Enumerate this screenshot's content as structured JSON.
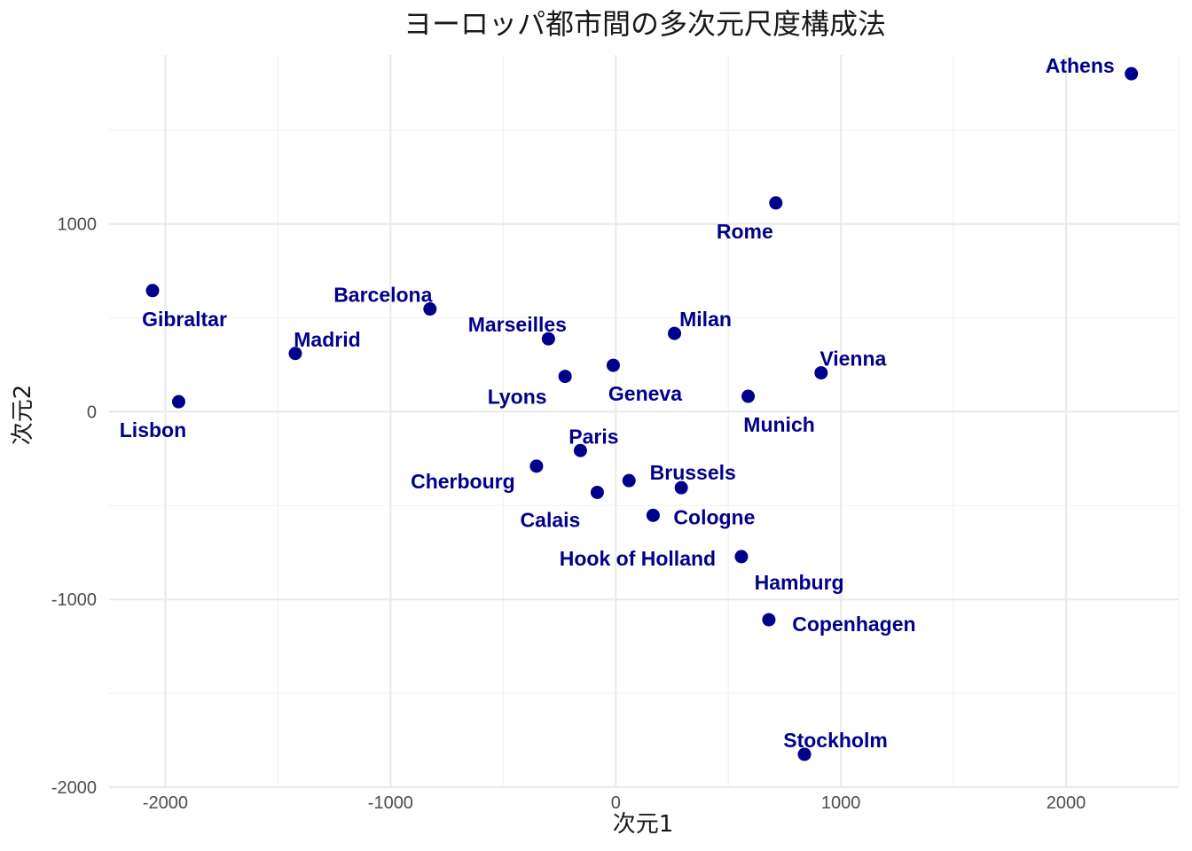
{
  "chart_data": {
    "type": "scatter",
    "title": "ヨーロッパ都市間の多次元尺度構成法",
    "xlabel": "次元1",
    "ylabel": "次元2",
    "xlim": [
      -2250,
      2500
    ],
    "ylim": [
      -2000,
      1900
    ],
    "x_ticks": [
      -2000,
      -1000,
      0,
      1000,
      2000
    ],
    "y_ticks": [
      -2000,
      -1000,
      0,
      1000
    ],
    "x_tick_labels": [
      "-2000",
      "-1000",
      "0",
      "1000",
      "2000"
    ],
    "y_tick_labels": [
      "-2000",
      "-1000",
      "0",
      "1000"
    ],
    "grid": true,
    "point_color": "#00008B",
    "points": [
      {
        "name": "Athens",
        "x": 2290,
        "y": 1800
      },
      {
        "name": "Barcelona",
        "x": -825,
        "y": 547
      },
      {
        "name": "Brussels",
        "x": 59,
        "y": -367
      },
      {
        "name": "Calais",
        "x": -82,
        "y": -430
      },
      {
        "name": "Cherbourg",
        "x": -352,
        "y": -290
      },
      {
        "name": "Cologne",
        "x": 166,
        "y": -552
      },
      {
        "name": "Copenhagen",
        "x": 680,
        "y": -1108
      },
      {
        "name": "Geneva",
        "x": -11,
        "y": 247
      },
      {
        "name": "Gibraltar",
        "x": -2057,
        "y": 645
      },
      {
        "name": "Hamburg",
        "x": 291,
        "y": -405
      },
      {
        "name": "Hook of Holland",
        "x": 558,
        "y": -772
      },
      {
        "name": "Lisbon",
        "x": -1941,
        "y": 53
      },
      {
        "name": "Lyons",
        "x": -225,
        "y": 188
      },
      {
        "name": "Madrid",
        "x": -1423,
        "y": 310
      },
      {
        "name": "Marseilles",
        "x": -299,
        "y": 388
      },
      {
        "name": "Milan",
        "x": 261,
        "y": 417
      },
      {
        "name": "Munich",
        "x": 588,
        "y": 82
      },
      {
        "name": "Paris",
        "x": -157,
        "y": -207
      },
      {
        "name": "Rome",
        "x": 711,
        "y": 1112
      },
      {
        "name": "Stockholm",
        "x": 838,
        "y": -1825
      },
      {
        "name": "Vienna",
        "x": 912,
        "y": 207
      }
    ]
  }
}
